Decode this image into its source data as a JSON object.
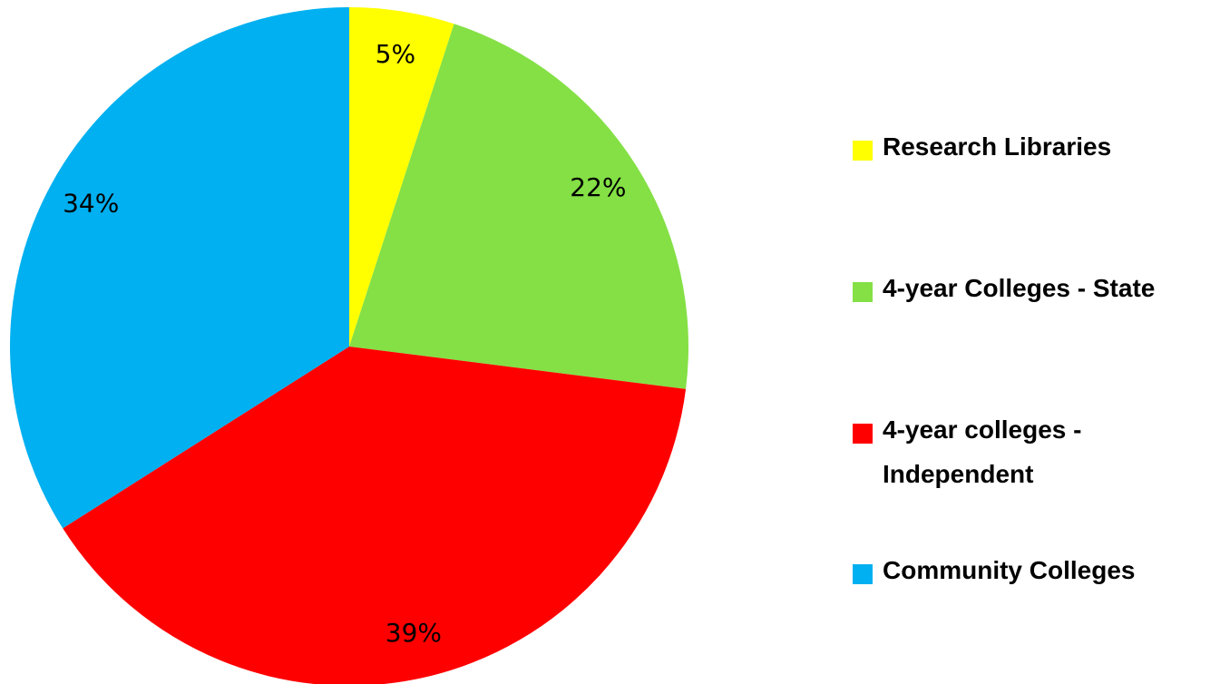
{
  "chart_data": {
    "type": "pie",
    "categories": [
      "Research Libraries",
      "4-year Colleges - State",
      "4-year colleges - Independent",
      "Community Colleges"
    ],
    "values": [
      5,
      22,
      39,
      34
    ],
    "value_labels": [
      "5%",
      "22%",
      "39%",
      "34%"
    ],
    "colors": [
      "#ffff00",
      "#84e045",
      "#ff0000",
      "#00b0f0"
    ],
    "legend": "right"
  }
}
